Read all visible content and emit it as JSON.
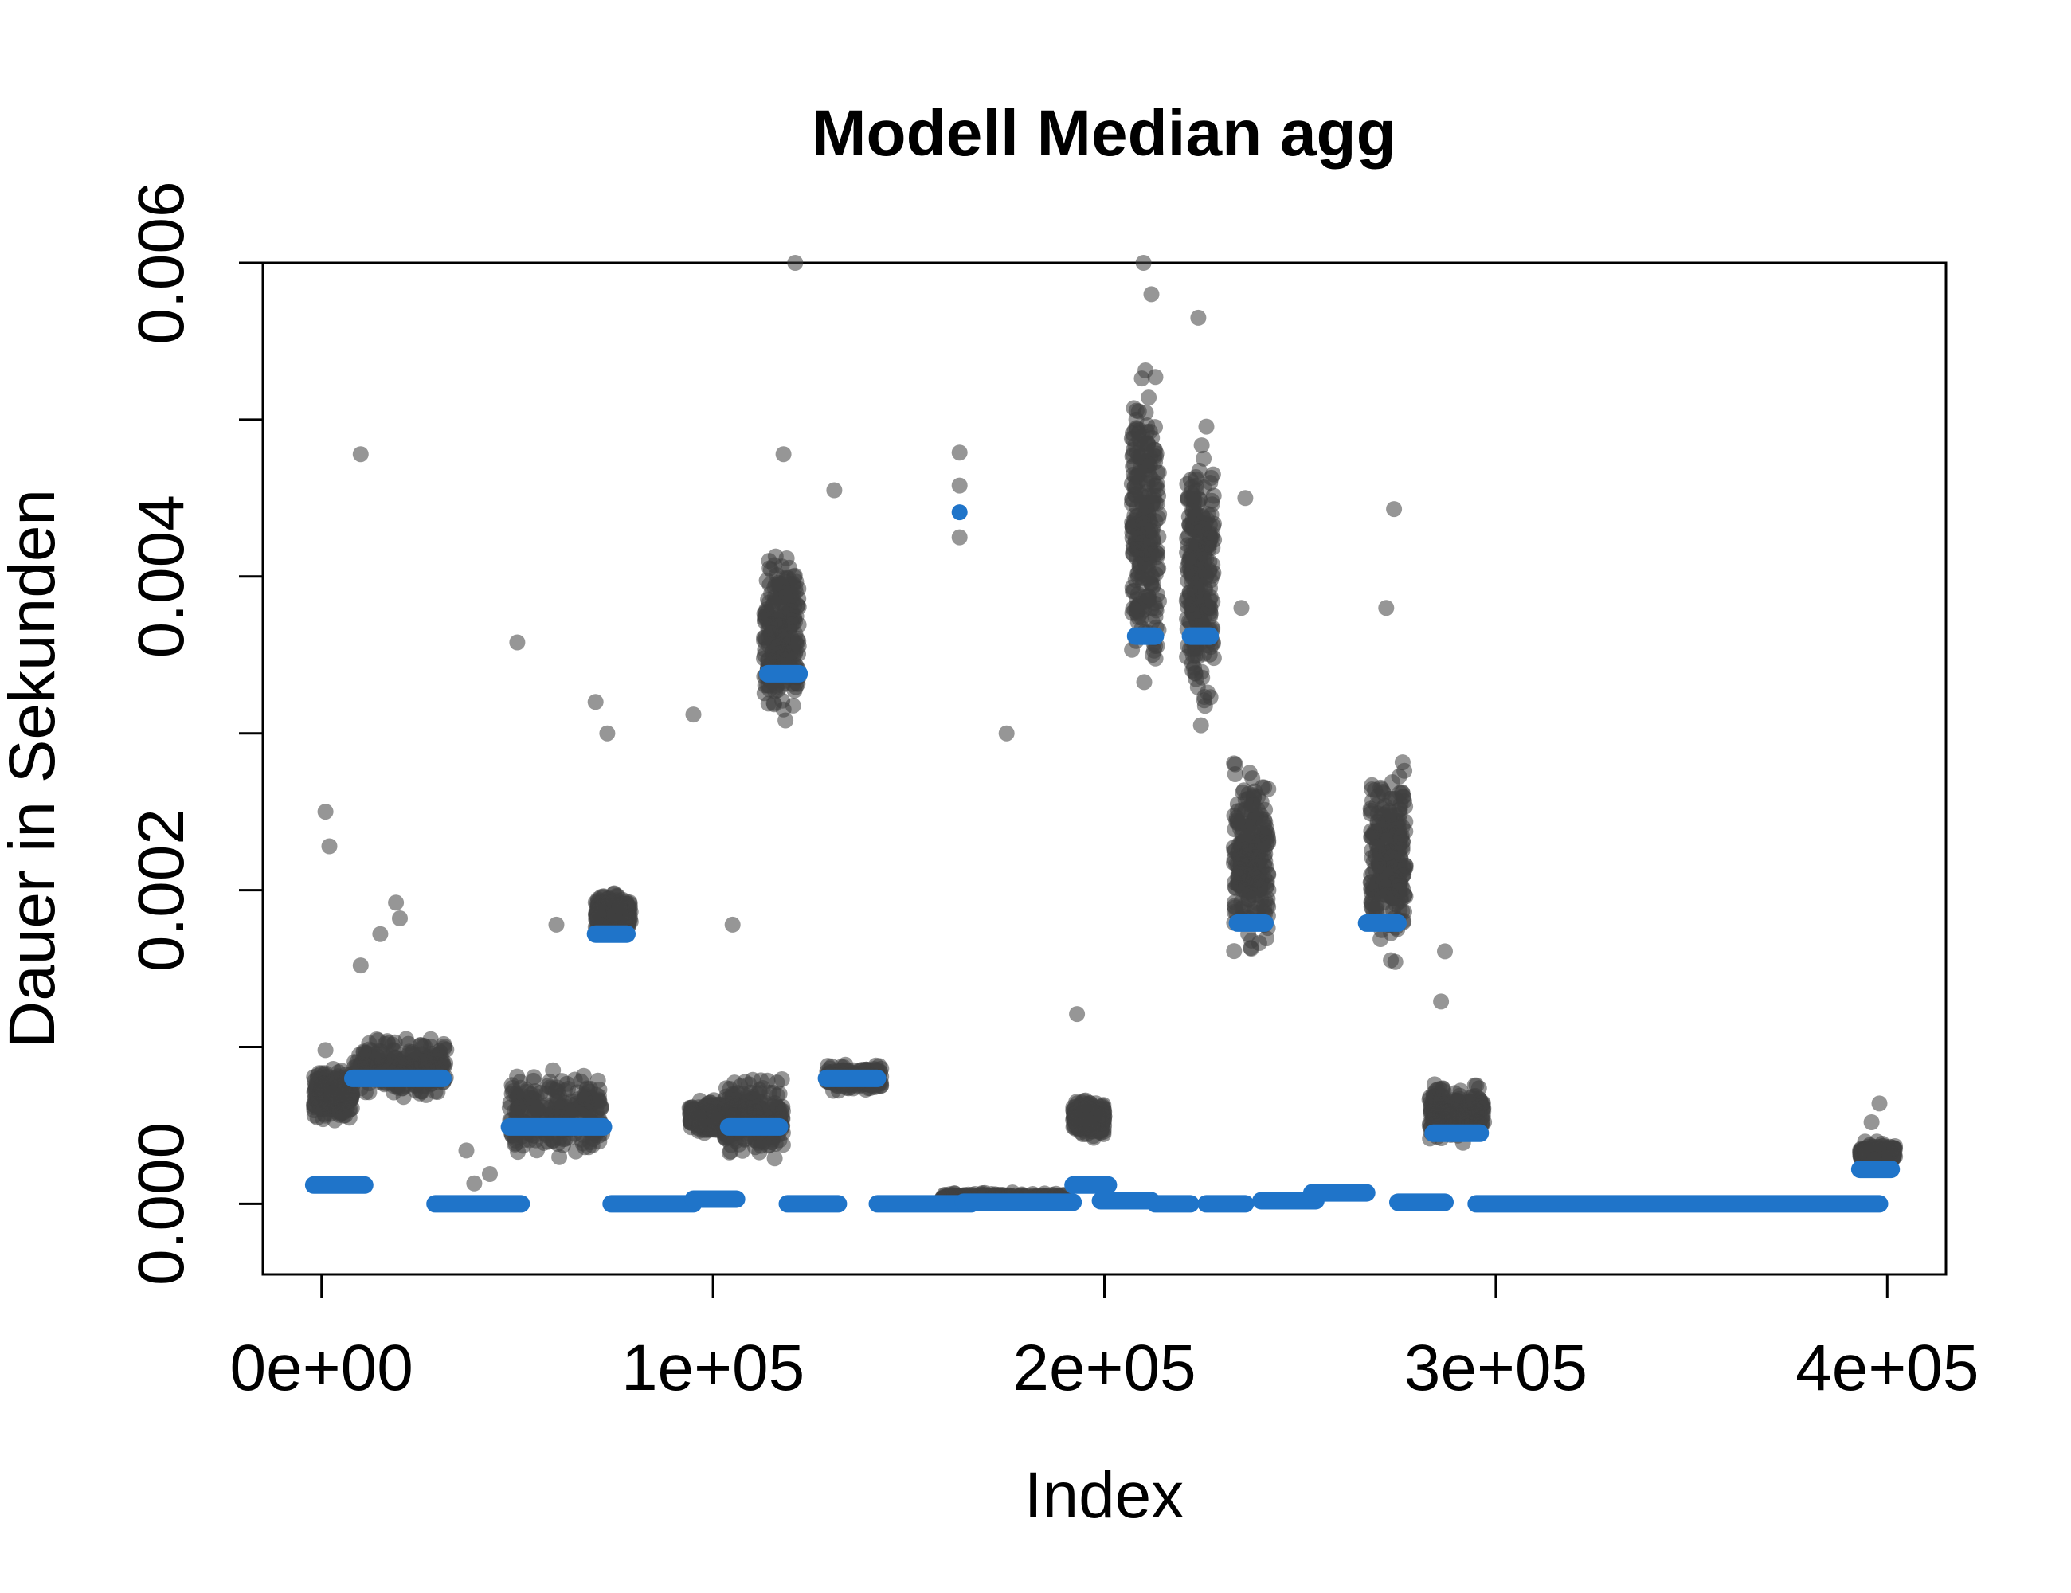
{
  "chart_data": {
    "type": "scatter",
    "title": "Modell Median agg",
    "xlabel": "Index",
    "ylabel": "Dauer in Sekunden",
    "xlim": [
      -15000,
      415000
    ],
    "ylim": [
      -0.00045,
      0.006
    ],
    "x_ticks": [
      0,
      100000,
      200000,
      300000,
      400000
    ],
    "x_tick_labels": [
      "0e+00",
      "1e+05",
      "2e+05",
      "3e+05",
      "4e+05"
    ],
    "y_ticks": [
      0,
      0.001,
      0.002,
      0.003,
      0.004,
      0.005,
      0.006
    ],
    "y_tick_labels": [
      "0.000",
      "",
      "0.002",
      "",
      "0.004",
      "",
      "0.006"
    ],
    "grid": false,
    "legend": "none",
    "colors": {
      "observed": "#3f3f3f",
      "median": "#1f74c9"
    },
    "series": [
      {
        "role": "observed",
        "clusters": [
          {
            "x": [
              -2000,
              8000
            ],
            "y": [
              0.0005,
              0.0009
            ]
          },
          {
            "x": [
              8000,
              32000
            ],
            "y": [
              0.00065,
              0.0011
            ]
          },
          {
            "x": [
              48000,
              72000
            ],
            "y": [
              0.0002,
              0.0009
            ]
          },
          {
            "x": [
              70000,
              79000
            ],
            "y": [
              0.0017,
              0.002
            ]
          },
          {
            "x": [
              94000,
              106000
            ],
            "y": [
              0.0004,
              0.0007
            ]
          },
          {
            "x": [
              103000,
              118000
            ],
            "y": [
              0.00025,
              0.00085
            ]
          },
          {
            "x": [
              113000,
              122000
            ],
            "y": [
              0.003,
              0.0043
            ]
          },
          {
            "x": [
              129000,
              143000
            ],
            "y": [
              0.0007,
              0.0009
            ]
          },
          {
            "x": [
              192000,
              200000
            ],
            "y": [
              0.0004,
              0.0007
            ]
          },
          {
            "x": [
              207000,
              214000
            ],
            "y": [
              0.0031,
              0.0055
            ]
          },
          {
            "x": [
              221000,
              228000
            ],
            "y": [
              0.0029,
              0.0051
            ]
          },
          {
            "x": [
              233000,
              242000
            ],
            "y": [
              0.0015,
              0.0029
            ]
          },
          {
            "x": [
              268000,
              277000
            ],
            "y": [
              0.0015,
              0.0029
            ]
          },
          {
            "x": [
              283000,
              297000
            ],
            "y": [
              0.00035,
              0.0008
            ]
          },
          {
            "x": [
              393000,
              402000
            ],
            "y": [
              0.00025,
              0.0004
            ]
          },
          {
            "x": [
              158000,
              190000
            ],
            "y": [
              0.0,
              8e-05
            ]
          }
        ],
        "outliers": [
          [
            1000,
            0.0025
          ],
          [
            2000,
            0.00228
          ],
          [
            10000,
            0.00478
          ],
          [
            1000,
            0.00098
          ],
          [
            10000,
            0.00152
          ],
          [
            15000,
            0.00172
          ],
          [
            19000,
            0.00192
          ],
          [
            20000,
            0.00182
          ],
          [
            50000,
            0.00358
          ],
          [
            60000,
            0.00178
          ],
          [
            70000,
            0.0032
          ],
          [
            73000,
            0.003
          ],
          [
            95000,
            0.00312
          ],
          [
            105000,
            0.00178
          ],
          [
            118000,
            0.00478
          ],
          [
            121000,
            0.006
          ],
          [
            131000,
            0.00455
          ],
          [
            163000,
            0.00479
          ],
          [
            163000,
            0.00458
          ],
          [
            163000,
            0.00425
          ],
          [
            175000,
            0.003
          ],
          [
            193000,
            0.00121
          ],
          [
            210000,
            0.006
          ],
          [
            212000,
            0.0058
          ],
          [
            224000,
            0.00565
          ],
          [
            236000,
            0.0045
          ],
          [
            235000,
            0.0038
          ],
          [
            274000,
            0.00443
          ],
          [
            272000,
            0.0038
          ],
          [
            287000,
            0.00161
          ],
          [
            286000,
            0.00129
          ],
          [
            37000,
            0.00034
          ],
          [
            43000,
            0.00019
          ],
          [
            39000,
            0.00013
          ],
          [
            398000,
            0.00064
          ],
          [
            396000,
            0.00052
          ]
        ]
      },
      {
        "role": "median",
        "segments": [
          [
            -2000,
            11000,
            0.00012
          ],
          [
            8000,
            31000,
            0.0008
          ],
          [
            29000,
            51000,
            0.0
          ],
          [
            48000,
            72000,
            0.00049
          ],
          [
            70000,
            78000,
            0.00172
          ],
          [
            74000,
            95000,
            0.0
          ],
          [
            95000,
            106000,
            3e-05
          ],
          [
            104000,
            117000,
            0.00049
          ],
          [
            114000,
            122000,
            0.00338
          ],
          [
            119000,
            132000,
            0.0
          ],
          [
            129000,
            142000,
            0.0008
          ],
          [
            142000,
            166000,
            0.0
          ],
          [
            163000,
            163000,
            0.00441
          ],
          [
            164000,
            192000,
            1e-05
          ],
          [
            192000,
            201000,
            0.00012
          ],
          [
            199000,
            212000,
            2e-05
          ],
          [
            208000,
            213000,
            0.00362
          ],
          [
            213000,
            222000,
            0.0
          ],
          [
            222000,
            227000,
            0.00362
          ],
          [
            226000,
            236000,
            0.0
          ],
          [
            234000,
            241000,
            0.00179
          ],
          [
            240000,
            254000,
            2e-05
          ],
          [
            253000,
            267000,
            7e-05
          ],
          [
            267000,
            275000,
            0.00179
          ],
          [
            275000,
            287000,
            1e-05
          ],
          [
            284000,
            296000,
            0.00045
          ],
          [
            295000,
            398000,
            0.0
          ],
          [
            393000,
            401000,
            0.00022
          ]
        ]
      }
    ]
  }
}
